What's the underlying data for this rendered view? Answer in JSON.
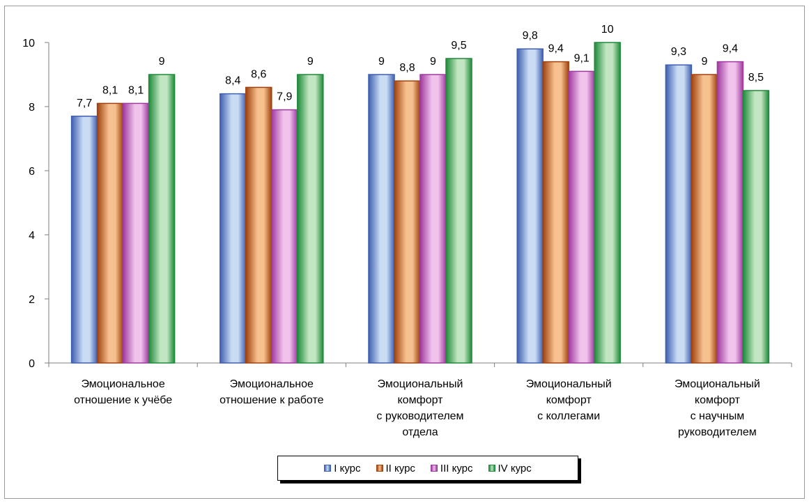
{
  "chart_data": {
    "type": "bar",
    "categories": [
      [
        "Эмоциональное",
        "отношение к учёбе"
      ],
      [
        "Эмоциональное",
        "отношение к работе"
      ],
      [
        "Эмоциональный",
        "комфорт",
        "с руководителем",
        "отдела"
      ],
      [
        "Эмоциональный",
        "комфорт",
        "с коллегами"
      ],
      [
        "Эмоциональный",
        "комфорт",
        "с научным",
        "руководителем"
      ]
    ],
    "series": [
      {
        "name": "I курс",
        "values": [
          7.7,
          8.4,
          9.0,
          9.8,
          9.3
        ],
        "labels": [
          "7,7",
          "8,4",
          "9",
          "9,8",
          "9,3"
        ],
        "color": "#3f5fb0",
        "fill": "#c9dcf4"
      },
      {
        "name": "II курс",
        "values": [
          8.1,
          8.6,
          8.8,
          9.4,
          9.0
        ],
        "labels": [
          "8,1",
          "8,6",
          "8,8",
          "9,4",
          "9"
        ],
        "color": "#a0420f",
        "fill": "#f6c18f"
      },
      {
        "name": "III курс",
        "values": [
          8.1,
          7.9,
          9.0,
          9.1,
          9.4
        ],
        "labels": [
          "8,1",
          "7,9",
          "9",
          "9,1",
          "9,4"
        ],
        "color": "#a03aa0",
        "fill": "#f0c2ec"
      },
      {
        "name": "IV курс",
        "values": [
          9.0,
          9.0,
          9.5,
          10.0,
          8.5
        ],
        "labels": [
          "9",
          "9",
          "9,5",
          "10",
          "8,5"
        ],
        "color": "#1f8a3a",
        "fill": "#c2e6c2"
      }
    ],
    "ylim": [
      0,
      10
    ],
    "yticks": [
      "0",
      "2",
      "4",
      "6",
      "8",
      "10"
    ],
    "grid": false,
    "legend_position": "bottom"
  },
  "legend": {
    "items": [
      {
        "label": "I курс",
        "color": "#3f5fb0",
        "fill": "#c9dcf4"
      },
      {
        "label": "II курс",
        "color": "#a0420f",
        "fill": "#f6c18f"
      },
      {
        "label": "III курс",
        "color": "#a03aa0",
        "fill": "#f0c2ec"
      },
      {
        "label": "IV курс",
        "color": "#1f8a3a",
        "fill": "#c2e6c2"
      }
    ]
  }
}
